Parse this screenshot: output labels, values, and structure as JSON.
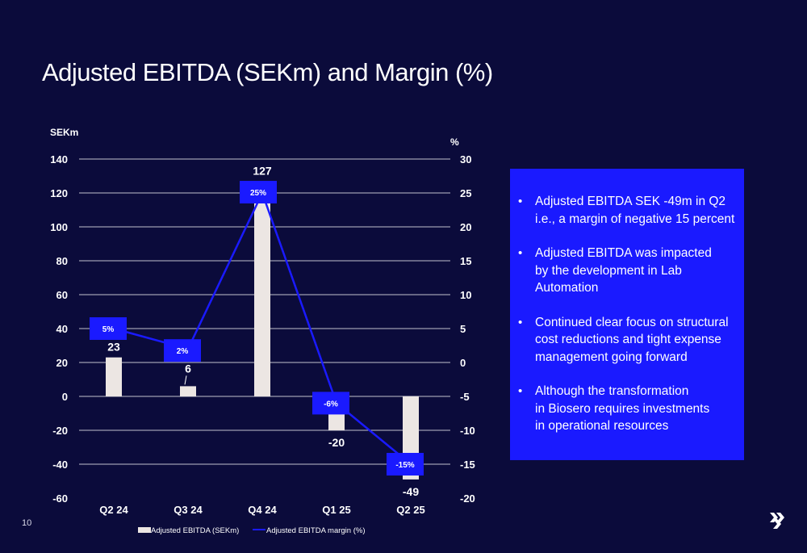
{
  "slide": {
    "title": "Adjusted EBITDA (SEKm) and Margin (%)",
    "page_number": "10",
    "bullets": [
      "Adjusted EBITDA SEK -49m in Q2\ni.e., a margin of negative 15 percent",
      "Adjusted EBITDA was impacted\nby the development in Lab\nAutomation",
      "Continued clear focus on structural\ncost reductions and tight expense\nmanagement going forward",
      "Although the transformation\nin Biosero requires investments\nin operational resources"
    ],
    "colors": {
      "background": "#0b0b3b",
      "info_box": "#1a1aff",
      "bar": "#ece6e3",
      "line": "#1a1aff",
      "gridline": "#ffffff"
    },
    "logo": "chevron-arrows-icon"
  },
  "chart_data": {
    "type": "bar",
    "categories": [
      "Q2 24",
      "Q3 24",
      "Q4 24",
      "Q1 25",
      "Q2 25"
    ],
    "series": [
      {
        "name": "Adjusted EBITDA (SEKm)",
        "type": "bar",
        "axis": "left",
        "values": [
          23,
          6,
          127,
          -20,
          -49
        ],
        "labels": [
          "23",
          "6",
          "127",
          "-20",
          "-49"
        ]
      },
      {
        "name": "Adjusted EBITDA margin (%)",
        "type": "line",
        "axis": "right",
        "values": [
          5,
          2,
          25,
          -6,
          -15
        ],
        "labels": [
          "5%",
          "2%",
          "25%",
          "-6%",
          "-15%"
        ]
      }
    ],
    "left_axis": {
      "label": "SEKm",
      "range": [
        -60,
        140
      ],
      "ticks": [
        140,
        120,
        100,
        80,
        60,
        40,
        20,
        0,
        -20,
        -40,
        -60
      ]
    },
    "right_axis": {
      "label": "%",
      "range": [
        -20,
        30
      ],
      "ticks": [
        30,
        25,
        20,
        15,
        10,
        5,
        0,
        -5,
        -10,
        -15,
        -20
      ]
    },
    "grid": true,
    "legend": "bottom-center"
  }
}
